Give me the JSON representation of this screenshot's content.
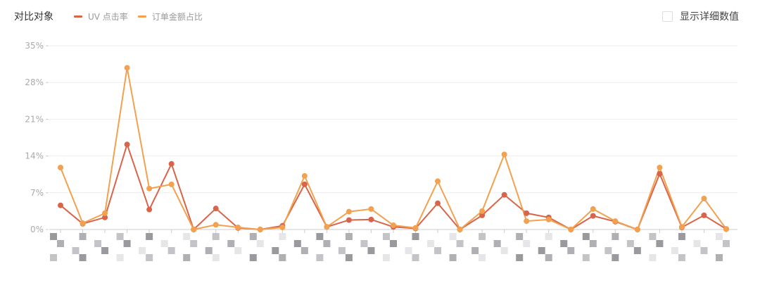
{
  "header": {
    "title": "对比对象",
    "legend": [
      {
        "label": "UV 点击率",
        "color": "#d9644a"
      },
      {
        "label": "订单金额占比",
        "color": "#f2a14f"
      }
    ],
    "toggle": {
      "label": "显示详细数值",
      "checked": false
    }
  },
  "chart_data": {
    "type": "line",
    "title": "",
    "xlabel": "",
    "ylabel": "",
    "ylim": [
      0,
      35
    ],
    "y_ticks": [
      "0%",
      "7%",
      "14%",
      "21%",
      "28%",
      "35%"
    ],
    "y_tick_values": [
      0,
      7,
      14,
      21,
      28,
      35
    ],
    "x_labels_obscured": true,
    "grid": true,
    "legend_placement": "top-left",
    "series": [
      {
        "name": "UV 点击率",
        "color": "#d9644a",
        "values": [
          4.6,
          1.1,
          2.3,
          16.2,
          3.8,
          12.5,
          0,
          4.0,
          0.3,
          0,
          0.7,
          8.6,
          0.5,
          1.8,
          1.9,
          0.5,
          0.2,
          5.0,
          0,
          2.7,
          6.6,
          3.1,
          2.3,
          0,
          2.6,
          1.5,
          0,
          10.6,
          0.4,
          2.7,
          0.1
        ]
      },
      {
        "name": "订单金额占比",
        "color": "#f2a14f",
        "values": [
          11.8,
          1.2,
          3.1,
          30.8,
          7.8,
          8.6,
          0,
          0.9,
          0.4,
          0,
          0.4,
          10.2,
          0.5,
          3.4,
          3.9,
          0.8,
          0.3,
          9.2,
          0,
          3.5,
          14.3,
          1.6,
          1.9,
          0,
          3.9,
          1.6,
          0,
          11.8,
          0.5,
          5.9,
          0.1
        ]
      }
    ]
  }
}
